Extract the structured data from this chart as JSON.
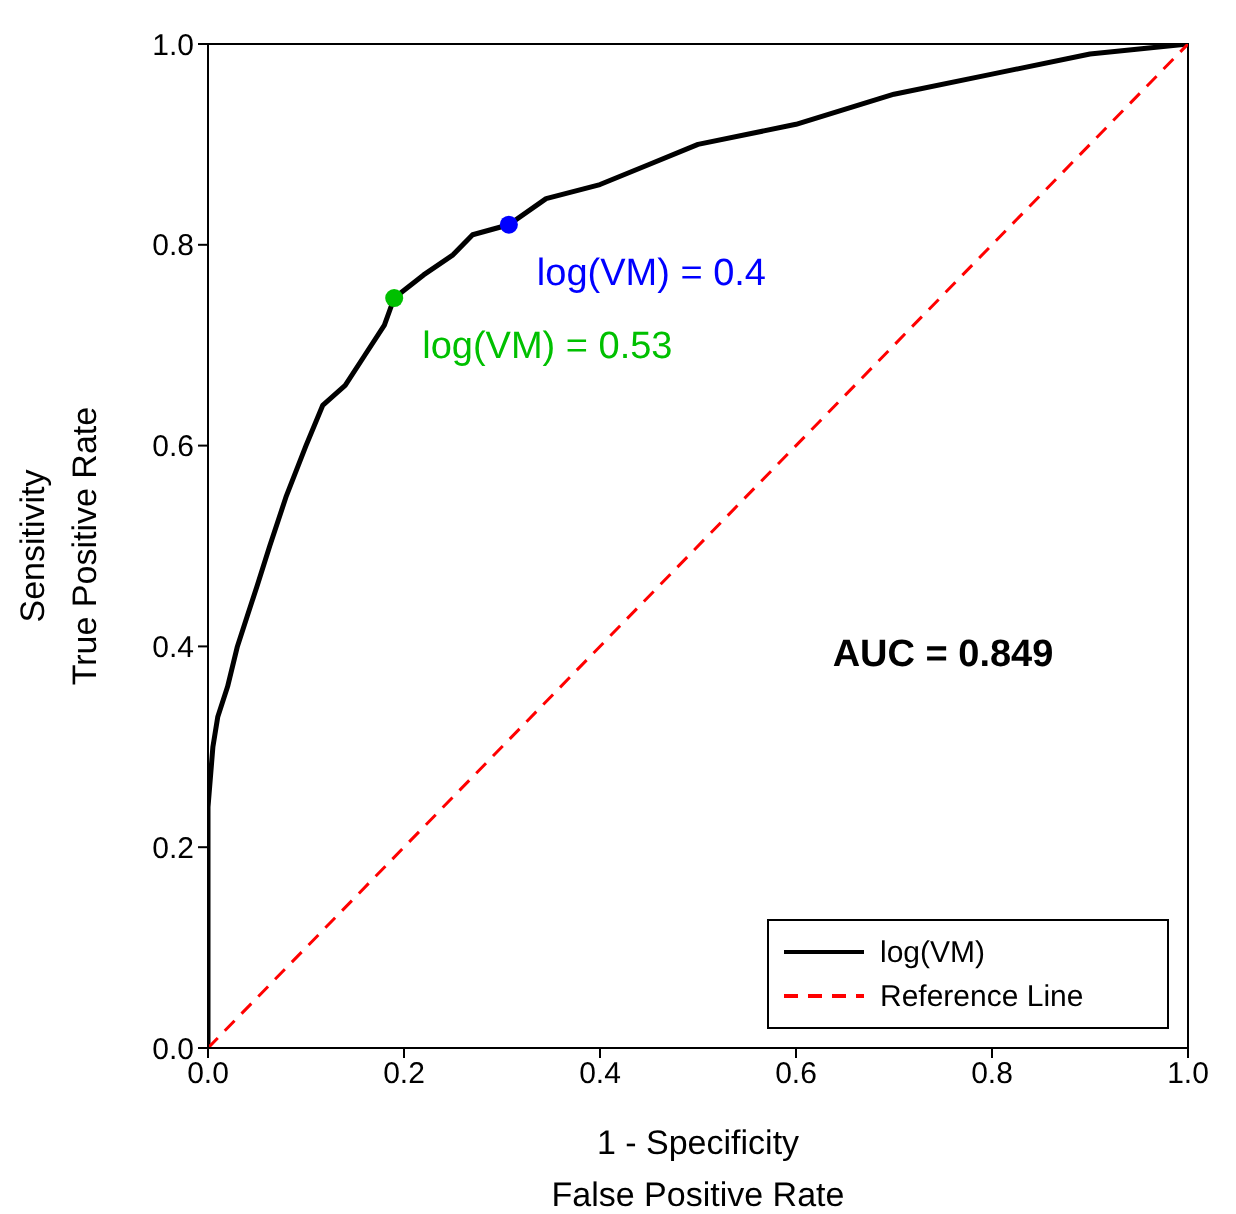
{
  "chart_data": {
    "type": "line",
    "xlabel": "1 - Specificity\nFalse Positive Rate",
    "ylabel": "Sensitivity\nTrue Positive Rate",
    "xlim": [
      0,
      1
    ],
    "ylim": [
      0,
      1
    ],
    "xticks": [
      {
        "value": 0,
        "label": "0.0"
      },
      0.2,
      0.4,
      0.6,
      0.8,
      {
        "value": 1,
        "label": "1.0"
      }
    ],
    "yticks": [
      {
        "value": 0,
        "label": "0.0"
      },
      0.2,
      0.4,
      0.6,
      0.8,
      {
        "value": 1,
        "label": "1.0"
      }
    ],
    "grid": false,
    "legend": "bottom right",
    "series": [
      {
        "name": "log(VM)",
        "type": "line",
        "color": "#000000",
        "line_style": "solid",
        "x": [
          0,
          0,
          0.005,
          0.01,
          0.02,
          0.03,
          0.04,
          0.05,
          0.063,
          0.08,
          0.1,
          0.117,
          0.14,
          0.16,
          0.18,
          0.19,
          0.22,
          0.25,
          0.27,
          0.307,
          0.345,
          0.4,
          0.45,
          0.5,
          0.6,
          0.7,
          0.8,
          0.9,
          1
        ],
        "values": [
          0,
          0.24,
          0.3,
          0.33,
          0.36,
          0.4,
          0.43,
          0.46,
          0.5,
          0.55,
          0.6,
          0.64,
          0.66,
          0.69,
          0.72,
          0.747,
          0.77,
          0.79,
          0.81,
          0.82,
          0.846,
          0.86,
          0.88,
          0.9,
          0.92,
          0.95,
          0.97,
          0.99,
          1
        ]
      },
      {
        "name": "Reference Line",
        "type": "line",
        "color": "#ff0000",
        "line_style": "dashed",
        "x": [
          0,
          1
        ],
        "values": [
          0,
          1
        ]
      },
      {
        "type": "scatter",
        "color": "#0000ff",
        "marker": "circle",
        "x": [
          0.307
        ],
        "values": [
          0.82
        ]
      },
      {
        "type": "scatter",
        "color": "#00c000",
        "marker": "circle",
        "x": [
          0.19
        ],
        "values": [
          0.747
        ]
      }
    ],
    "annotations": [
      {
        "text": "log(VM) = 0.4",
        "x": 0.307,
        "y": 0.82
      },
      {
        "text": "log(VM) = 0.53",
        "x": 0.19,
        "y": 0.747
      },
      "AUC = 0.849"
    ]
  }
}
